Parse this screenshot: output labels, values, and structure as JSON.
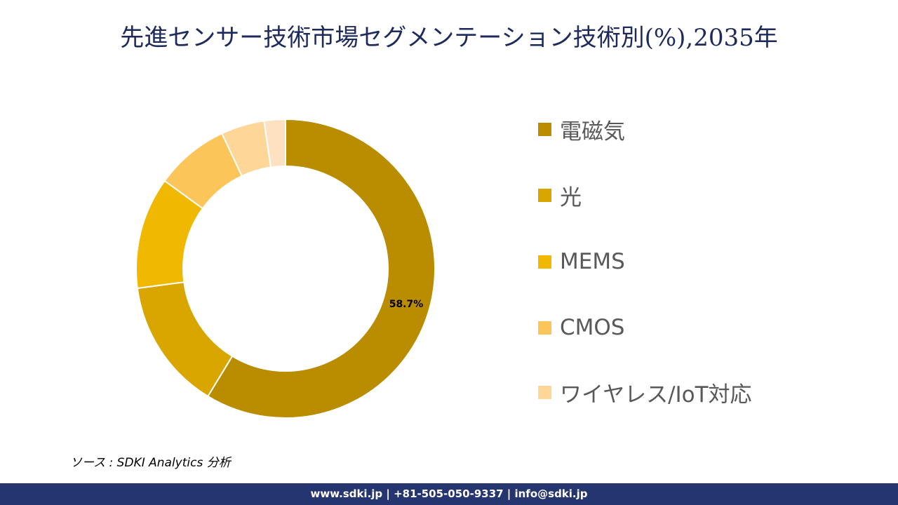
{
  "title": "先進センサー技術市場セグメンテーション技術別(%),2035年",
  "chart_data": {
    "type": "pie",
    "subtype": "donut",
    "title": "先進センサー技術市場セグメンテーション技術別(%),2035年",
    "categories": [
      "電磁気",
      "光",
      "MEMS",
      "CMOS",
      "ワイヤレス/IoT対応",
      ""
    ],
    "values": [
      58.7,
      14.2,
      12.1,
      8.0,
      4.7,
      2.3
    ],
    "colors": [
      "#BA8C00",
      "#D9A600",
      "#F0B800",
      "#FCC55A",
      "#FDD698",
      "#FEE1C0"
    ],
    "data_labels": [
      {
        "category": "電磁気",
        "text": "58.7%"
      }
    ],
    "legend_position": "right",
    "start_angle_deg": 0,
    "direction": "clockwise"
  },
  "legend": {
    "items": [
      {
        "label": "電磁気",
        "color": "#BA8C00"
      },
      {
        "label": "光",
        "color": "#D9A600"
      },
      {
        "label": "MEMS",
        "color": "#F0B800"
      },
      {
        "label": "CMOS",
        "color": "#FCC55A"
      },
      {
        "label": "ワイヤレス/IoT対応",
        "color": "#FDD698"
      }
    ]
  },
  "data_label": "58.7%",
  "source": "ソース : SDKI Analytics  分析",
  "footer": "www.sdki.jp | +81-505-050-9337 | info@sdki.jp"
}
